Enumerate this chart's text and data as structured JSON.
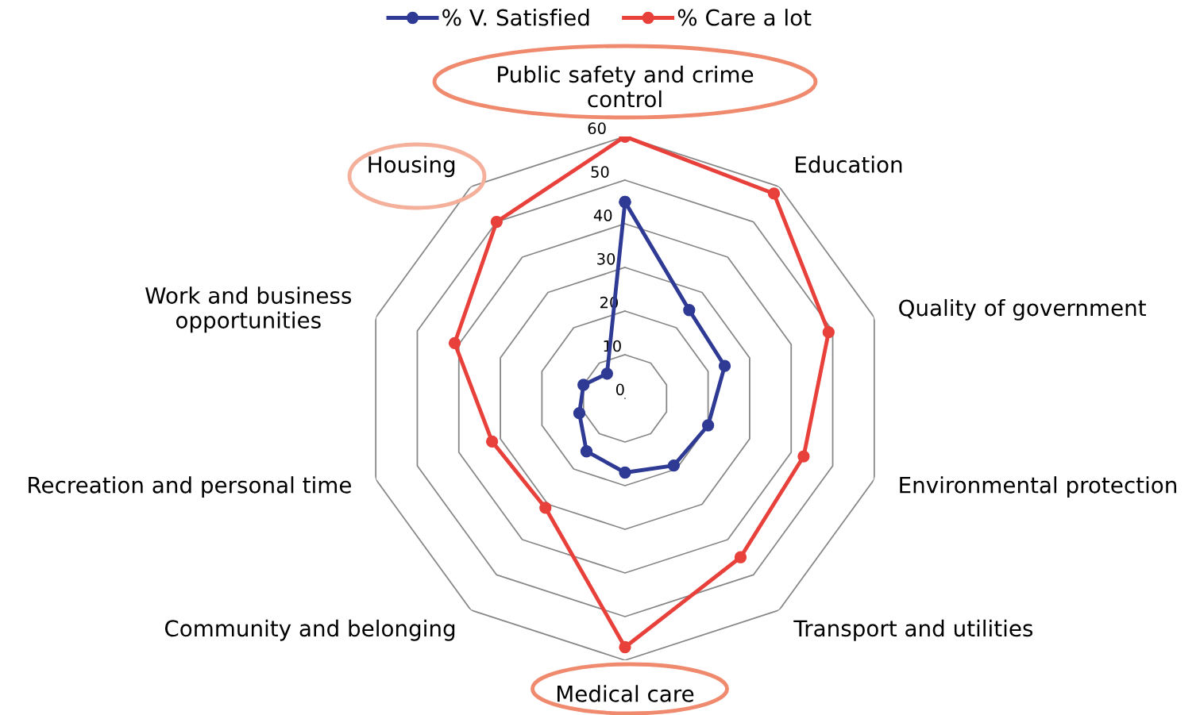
{
  "chart_data": {
    "type": "radar",
    "categories": [
      "Public safety and crime\ncontrol",
      "Education",
      "Quality of government",
      "Environmental protection",
      "Transport and utilities",
      "Medical care",
      "Community and belonging",
      "Recreation and personal time",
      "Work and business\nopportunities",
      "Housing"
    ],
    "series": [
      {
        "name": "% V. Satisfied",
        "color": "#2e3a94",
        "values": [
          45,
          25,
          24,
          20,
          19,
          17,
          15,
          11,
          10,
          7
        ]
      },
      {
        "name": "% Care a lot",
        "color": "#e8403a",
        "values": [
          60,
          58,
          49,
          43,
          45,
          57,
          31,
          32,
          41,
          50
        ]
      }
    ],
    "ylim": [
      0,
      60
    ],
    "yticks": [
      0,
      10,
      20,
      30,
      40,
      50,
      60
    ],
    "grid": true,
    "legend": "top",
    "marker": "circle",
    "line_style": "solid"
  }
}
